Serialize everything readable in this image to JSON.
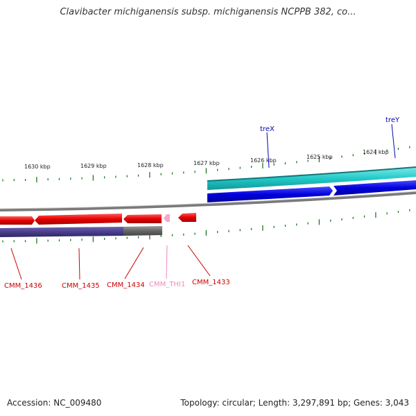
{
  "title": "Clavibacter michiganensis subsp. michiganensis NCPPB 382, co...",
  "footer": {
    "accession": "Accession: NC_009480",
    "summary": "Topology: circular; Length: 3,297,891 bp; Genes: 3,043"
  },
  "scale_labels": [
    "1630 kbp",
    "1629 kbp",
    "1628 kbp",
    "1627 kbp",
    "1626 kbp",
    "1625 kbp",
    "1624 kbp"
  ],
  "upper_gene_labels": [
    "treX",
    "treY"
  ],
  "lower_gene_labels": [
    "CMM_1436",
    "CMM_1435",
    "CMM_1434",
    "CMM_THI1",
    "CMM_1433"
  ],
  "colors": {
    "upper_labels": "#0000aa",
    "lower_labels": "#cc0000",
    "trna_label": "#ee88bb",
    "cds_red": "#e60000",
    "cds_blue": "#0000dd",
    "teal_track": "#22c8c8",
    "purple_track": "#4a3f8c",
    "backbone": "#8a8a8a",
    "tick_green": "#1a7a1a"
  }
}
